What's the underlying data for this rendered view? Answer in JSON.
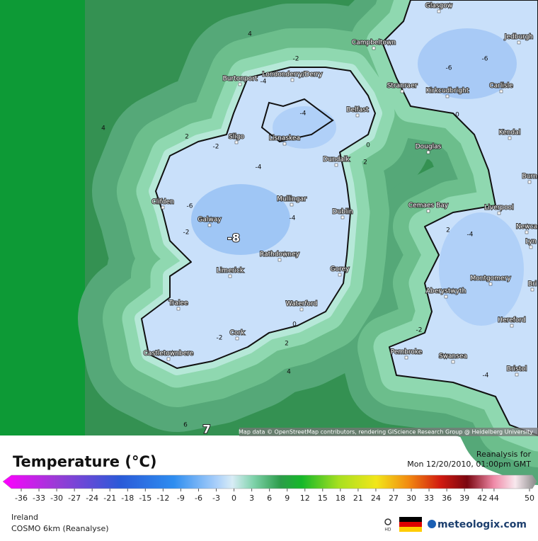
{
  "map": {
    "attribution": "Map data © OpenStreetMap contributors, rendering GIScience Research Group @ Heidelberg University",
    "cities": [
      "Glasgow",
      "Jedburgh",
      "Campbeltown",
      "Burtonport",
      "Londonderry/Derry",
      "Stranraer",
      "Kirkcudbright",
      "Carlisle",
      "Belfast",
      "Kendal",
      "Sligo",
      "Lisnaskea",
      "Douglas",
      "Dundalk",
      "Burn",
      "Clifden",
      "Mullingar",
      "Cemaes Bay",
      "Liverpool",
      "Dublin",
      "Galway",
      "Newca",
      "Lyn",
      "Rathdowney",
      "Limerick",
      "Gorey",
      "Montgomery",
      "Aberystwyth",
      "Bri",
      "Tralee",
      "Waterford",
      "Hereford",
      "Cork",
      "Castletownbere",
      "Pembroke",
      "Swansea",
      "Bristol"
    ],
    "contour_labels": [
      4,
      4,
      -2,
      -4,
      -6,
      -6,
      2,
      -2,
      -4,
      -4,
      -6,
      -4,
      -2,
      -8,
      0,
      0,
      2,
      2,
      -4,
      -2,
      -2,
      0,
      2,
      4,
      -4,
      6,
      7
    ]
  },
  "legend": {
    "title": "Temperature (°C)",
    "ticks": [
      -36,
      -33,
      -30,
      -27,
      -24,
      -21,
      -18,
      -15,
      -12,
      -9,
      -6,
      -3,
      0,
      3,
      6,
      9,
      12,
      15,
      18,
      21,
      24,
      27,
      30,
      33,
      36,
      39,
      42,
      44,
      50
    ]
  },
  "info": {
    "heading": "Reanalysis for",
    "time": "Mon 12/20/2010, 01:00pm GMT"
  },
  "footer": {
    "region": "Ireland",
    "model": "COSMO 6km (Reanalyse)",
    "hd": "HD",
    "brand": "meteologix.com"
  }
}
